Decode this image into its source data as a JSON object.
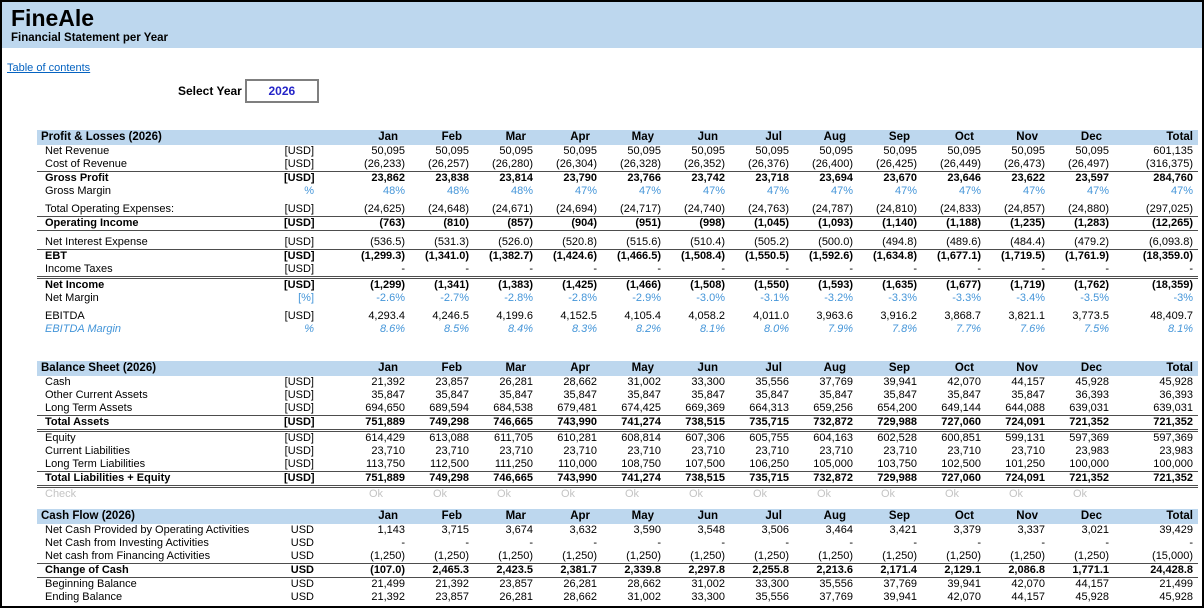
{
  "header": {
    "title": "FineAle",
    "subtitle": "Financial Statement per Year",
    "toc_link": "Table of contents",
    "select_year_label": "Select Year",
    "select_year_value": "2026"
  },
  "colors": {
    "band_blue": "#BDD7EE",
    "accent_blue_text": "#4596D9",
    "input_value_blue": "#2424C8",
    "link_blue": "#0563C1",
    "muted_gray": "#C4C4C4"
  },
  "columns": [
    "Jan",
    "Feb",
    "Mar",
    "Apr",
    "May",
    "Jun",
    "Jul",
    "Aug",
    "Sep",
    "Oct",
    "Nov",
    "Dec",
    "Total"
  ],
  "tables": [
    {
      "title": "Profit & Losses (2026)",
      "rows": [
        {
          "label": "Net Revenue",
          "unit": "[USD]",
          "values": [
            "50,095",
            "50,095",
            "50,095",
            "50,095",
            "50,095",
            "50,095",
            "50,095",
            "50,095",
            "50,095",
            "50,095",
            "50,095",
            "50,095",
            "601,135"
          ]
        },
        {
          "label": "Cost of Revenue",
          "unit": "[USD]",
          "rule_bottom": "single",
          "values": [
            "(26,233)",
            "(26,257)",
            "(26,280)",
            "(26,304)",
            "(26,328)",
            "(26,352)",
            "(26,376)",
            "(26,400)",
            "(26,425)",
            "(26,449)",
            "(26,473)",
            "(26,497)",
            "(316,375)"
          ]
        },
        {
          "label": "Gross Profit",
          "unit": "[USD]",
          "bold": true,
          "values": [
            "23,862",
            "23,838",
            "23,814",
            "23,790",
            "23,766",
            "23,742",
            "23,718",
            "23,694",
            "23,670",
            "23,646",
            "23,622",
            "23,597",
            "284,760"
          ]
        },
        {
          "label": "Gross Margin",
          "unit": "%",
          "color": "blue",
          "values": [
            "48%",
            "48%",
            "48%",
            "47%",
            "47%",
            "47%",
            "47%",
            "47%",
            "47%",
            "47%",
            "47%",
            "47%",
            "47%"
          ]
        },
        {
          "label": "Total Operating Expenses:",
          "unit": "[USD]",
          "gap_before": true,
          "rule_bottom": "single",
          "values": [
            "(24,625)",
            "(24,648)",
            "(24,671)",
            "(24,694)",
            "(24,717)",
            "(24,740)",
            "(24,763)",
            "(24,787)",
            "(24,810)",
            "(24,833)",
            "(24,857)",
            "(24,880)",
            "(297,025)"
          ]
        },
        {
          "label": "Operating Income",
          "unit": "[USD]",
          "bold": true,
          "rule_bottom": "single",
          "values": [
            "(763)",
            "(810)",
            "(857)",
            "(904)",
            "(951)",
            "(998)",
            "(1,045)",
            "(1,093)",
            "(1,140)",
            "(1,188)",
            "(1,235)",
            "(1,283)",
            "(12,265)"
          ]
        },
        {
          "label": "Net Interest Expense",
          "unit": "[USD]",
          "gap_before": true,
          "rule_bottom": "single",
          "values": [
            "(536.5)",
            "(531.3)",
            "(526.0)",
            "(520.8)",
            "(515.6)",
            "(510.4)",
            "(505.2)",
            "(500.0)",
            "(494.8)",
            "(489.6)",
            "(484.4)",
            "(479.2)",
            "(6,093.8)"
          ]
        },
        {
          "label": "EBT",
          "unit": "[USD]",
          "bold": true,
          "values": [
            "(1,299.3)",
            "(1,341.0)",
            "(1,382.7)",
            "(1,424.6)",
            "(1,466.5)",
            "(1,508.4)",
            "(1,550.5)",
            "(1,592.6)",
            "(1,634.8)",
            "(1,677.1)",
            "(1,719.5)",
            "(1,761.9)",
            "(18,359.0)"
          ]
        },
        {
          "label": "Income Taxes",
          "unit": "[USD]",
          "rule_bottom": "double",
          "values": [
            "-",
            "-",
            "-",
            "-",
            "-",
            "-",
            "-",
            "-",
            "-",
            "-",
            "-",
            "-",
            "-"
          ]
        },
        {
          "label": "Net Income",
          "unit": "[USD]",
          "bold": true,
          "values": [
            "(1,299)",
            "(1,341)",
            "(1,383)",
            "(1,425)",
            "(1,466)",
            "(1,508)",
            "(1,550)",
            "(1,593)",
            "(1,635)",
            "(1,677)",
            "(1,719)",
            "(1,762)",
            "(18,359)"
          ]
        },
        {
          "label": "Net Margin",
          "unit": "[%]",
          "color": "blue",
          "values": [
            "-2.6%",
            "-2.7%",
            "-2.8%",
            "-2.8%",
            "-2.9%",
            "-3.0%",
            "-3.1%",
            "-3.2%",
            "-3.3%",
            "-3.3%",
            "-3.4%",
            "-3.5%",
            "-3%"
          ]
        },
        {
          "label": "EBITDA",
          "unit": "[USD]",
          "gap_before": true,
          "values": [
            "4,293.4",
            "4,246.5",
            "4,199.6",
            "4,152.5",
            "4,105.4",
            "4,058.2",
            "4,011.0",
            "3,963.6",
            "3,916.2",
            "3,868.7",
            "3,821.1",
            "3,773.5",
            "48,409.7"
          ]
        },
        {
          "label": "EBITDA Margin",
          "unit": "%",
          "color": "blue",
          "italic": true,
          "label_blue": true,
          "values": [
            "8.6%",
            "8.5%",
            "8.4%",
            "8.3%",
            "8.2%",
            "8.1%",
            "8.0%",
            "7.9%",
            "7.8%",
            "7.7%",
            "7.6%",
            "7.5%",
            "8.1%"
          ]
        }
      ]
    },
    {
      "title": "Balance Sheet (2026)",
      "rows": [
        {
          "label": "Cash",
          "unit": "[USD]",
          "values": [
            "21,392",
            "23,857",
            "26,281",
            "28,662",
            "31,002",
            "33,300",
            "35,556",
            "37,769",
            "39,941",
            "42,070",
            "44,157",
            "45,928",
            "45,928"
          ]
        },
        {
          "label": "Other Current Assets",
          "unit": "[USD]",
          "values": [
            "35,847",
            "35,847",
            "35,847",
            "35,847",
            "35,847",
            "35,847",
            "35,847",
            "35,847",
            "35,847",
            "35,847",
            "35,847",
            "36,393",
            "36,393"
          ]
        },
        {
          "label": "Long Term Assets",
          "unit": "[USD]",
          "rule_bottom": "single",
          "values": [
            "694,650",
            "689,594",
            "684,538",
            "679,481",
            "674,425",
            "669,369",
            "664,313",
            "659,256",
            "654,200",
            "649,144",
            "644,088",
            "639,031",
            "639,031"
          ]
        },
        {
          "label": "Total Assets",
          "unit": "[USD]",
          "bold": true,
          "rule_bottom": "double",
          "values": [
            "751,889",
            "749,298",
            "746,665",
            "743,990",
            "741,274",
            "738,515",
            "735,715",
            "732,872",
            "729,988",
            "727,060",
            "724,091",
            "721,352",
            "721,352"
          ]
        },
        {
          "label": "Equity",
          "unit": "[USD]",
          "values": [
            "614,429",
            "613,088",
            "611,705",
            "610,281",
            "608,814",
            "607,306",
            "605,755",
            "604,163",
            "602,528",
            "600,851",
            "599,131",
            "597,369",
            "597,369"
          ]
        },
        {
          "label": "Current Liabilities",
          "unit": "[USD]",
          "values": [
            "23,710",
            "23,710",
            "23,710",
            "23,710",
            "23,710",
            "23,710",
            "23,710",
            "23,710",
            "23,710",
            "23,710",
            "23,710",
            "23,983",
            "23,983"
          ]
        },
        {
          "label": "Long Term Liabilities",
          "unit": "[USD]",
          "rule_bottom": "single",
          "values": [
            "113,750",
            "112,500",
            "111,250",
            "110,000",
            "108,750",
            "107,500",
            "106,250",
            "105,000",
            "103,750",
            "102,500",
            "101,250",
            "100,000",
            "100,000"
          ]
        },
        {
          "label": "Total Liabilities + Equity",
          "unit": "[USD]",
          "bold": true,
          "rule_bottom": "double",
          "values": [
            "751,889",
            "749,298",
            "746,665",
            "743,990",
            "741,274",
            "738,515",
            "735,715",
            "732,872",
            "729,988",
            "727,060",
            "724,091",
            "721,352",
            "721,352"
          ]
        },
        {
          "label": "Check",
          "unit": "",
          "muted": true,
          "center": true,
          "values": [
            "Ok",
            "Ok",
            "Ok",
            "Ok",
            "Ok",
            "Ok",
            "Ok",
            "Ok",
            "Ok",
            "Ok",
            "Ok",
            "Ok",
            ""
          ]
        }
      ]
    },
    {
      "title": "Cash Flow (2026)",
      "rows": [
        {
          "label": "Net Cash Provided by Operating Activities",
          "unit": "USD",
          "values": [
            "1,143",
            "3,715",
            "3,674",
            "3,632",
            "3,590",
            "3,548",
            "3,506",
            "3,464",
            "3,421",
            "3,379",
            "3,337",
            "3,021",
            "39,429"
          ]
        },
        {
          "label": "Net Cash from Investing Activities",
          "unit": "USD",
          "values": [
            "-",
            "-",
            "-",
            "-",
            "-",
            "-",
            "-",
            "-",
            "-",
            "-",
            "-",
            "-",
            "-"
          ]
        },
        {
          "label": "Net cash from Financing Activities",
          "unit": "USD",
          "rule_bottom": "single",
          "values": [
            "(1,250)",
            "(1,250)",
            "(1,250)",
            "(1,250)",
            "(1,250)",
            "(1,250)",
            "(1,250)",
            "(1,250)",
            "(1,250)",
            "(1,250)",
            "(1,250)",
            "(1,250)",
            "(15,000)"
          ]
        },
        {
          "label": "Change of Cash",
          "unit": "USD",
          "bold": true,
          "rule_bottom": "single",
          "values": [
            "(107.0)",
            "2,465.3",
            "2,423.5",
            "2,381.7",
            "2,339.8",
            "2,297.8",
            "2,255.8",
            "2,213.6",
            "2,171.4",
            "2,129.1",
            "2,086.8",
            "1,771.1",
            "24,428.8"
          ]
        },
        {
          "label": "Beginning Balance",
          "unit": "USD",
          "values": [
            "21,499",
            "21,392",
            "23,857",
            "26,281",
            "28,662",
            "31,002",
            "33,300",
            "35,556",
            "37,769",
            "39,941",
            "42,070",
            "44,157",
            "21,499"
          ]
        },
        {
          "label": "Ending Balance",
          "unit": "USD",
          "values": [
            "21,392",
            "23,857",
            "26,281",
            "28,662",
            "31,002",
            "33,300",
            "35,556",
            "37,769",
            "39,941",
            "42,070",
            "44,157",
            "45,928",
            "45,928"
          ]
        }
      ]
    }
  ]
}
